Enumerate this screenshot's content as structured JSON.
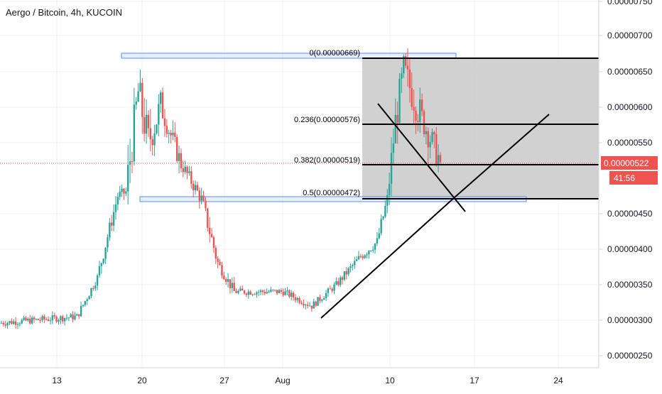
{
  "header": {
    "title": "Aergo / Bitcoin, 4h, KUCOIN"
  },
  "price_axis": {
    "ticks": [
      "0.00000750",
      "0.00000700",
      "0.00000650",
      "0.00000600",
      "0.00000550",
      "0.00000450",
      "0.00000400",
      "0.00000350",
      "0.00000300",
      "0.00000250"
    ],
    "current_price": "0.00000522",
    "countdown": "41:56"
  },
  "time_axis": {
    "ticks": [
      "13",
      "20",
      "27",
      "Aug",
      "10",
      "17",
      "24"
    ]
  },
  "fib_labels": [
    "0(0.00000669)",
    "0.236(0.00000576)",
    "0.382(0.00000519)",
    "0.5(0.00000472)"
  ],
  "colors": {
    "up": "#26a69a",
    "down": "#ef5350",
    "fib_zone": "#cccccc",
    "box": "#2962ff",
    "line": "#000000"
  },
  "chart_data": {
    "type": "candlestick",
    "title": "Aergo / Bitcoin, 4h, KUCOIN",
    "ylim": [
      2.2e-06,
      7.7e-06
    ],
    "x_ticks": [
      "13",
      "20",
      "27",
      "Aug",
      "10",
      "17",
      "24"
    ],
    "y_ticks": [
      7.5e-06,
      7e-06,
      6.5e-06,
      6e-06,
      5.5e-06,
      4.5e-06,
      4e-06,
      3.5e-06,
      3e-06,
      2.5e-06
    ],
    "current_price": 5.22e-06,
    "fib_levels": [
      {
        "ratio": 0,
        "price": 6.69e-06
      },
      {
        "ratio": 0.236,
        "price": 5.76e-06
      },
      {
        "ratio": 0.382,
        "price": 5.19e-06
      },
      {
        "ratio": 0.5,
        "price": 4.72e-06
      }
    ],
    "phases": [
      {
        "candles": 38,
        "start": 2.96e-06,
        "end": 3.05e-06,
        "vol": 1e-07
      },
      {
        "candles": 10,
        "start": 3.05e-06,
        "end": 3.6e-06,
        "vol": 1.2e-07
      },
      {
        "candles": 10,
        "start": 3.6e-06,
        "end": 4.75e-06,
        "vol": 2e-07
      },
      {
        "candles": 4,
        "start": 4.75e-06,
        "end": 4.8e-06,
        "vol": 1.5e-07
      },
      {
        "candles": 6,
        "start": 4.8e-06,
        "end": 6.2e-06,
        "vol": 6e-07
      },
      {
        "candles": 5,
        "start": 6.2e-06,
        "end": 5.5e-06,
        "vol": 6e-07
      },
      {
        "candles": 6,
        "start": 5.5e-06,
        "end": 6e-06,
        "vol": 5e-07
      },
      {
        "candles": 10,
        "start": 6e-06,
        "end": 5.2e-06,
        "vol": 3e-07
      },
      {
        "candles": 10,
        "start": 5.2e-06,
        "end": 4.7e-06,
        "vol": 2e-07
      },
      {
        "candles": 8,
        "start": 4.7e-06,
        "end": 3.8e-06,
        "vol": 2.5e-07
      },
      {
        "candles": 8,
        "start": 3.8e-06,
        "end": 3.4e-06,
        "vol": 1.5e-07
      },
      {
        "candles": 24,
        "start": 3.4e-06,
        "end": 3.4e-06,
        "vol": 1e-07
      },
      {
        "candles": 14,
        "start": 3.4e-06,
        "end": 3.2e-06,
        "vol": 1e-07
      },
      {
        "candles": 12,
        "start": 3.2e-06,
        "end": 3.5e-06,
        "vol": 1e-07
      },
      {
        "candles": 12,
        "start": 3.5e-06,
        "end": 3.9e-06,
        "vol": 1.2e-07
      },
      {
        "candles": 8,
        "start": 3.9e-06,
        "end": 4.1e-06,
        "vol": 1.5e-07
      },
      {
        "candles": 5,
        "start": 4.1e-06,
        "end": 4.7e-06,
        "vol": 2e-07
      },
      {
        "candles": 4,
        "start": 4.7e-06,
        "end": 5.8e-06,
        "vol": 4e-07
      },
      {
        "candles": 4,
        "start": 5.8e-06,
        "end": 6.5e-06,
        "vol": 5e-07
      },
      {
        "candles": 8,
        "start": 6.5e-06,
        "end": 5.9e-06,
        "vol": 5e-07
      },
      {
        "candles": 10,
        "start": 5.9e-06,
        "end": 5.22e-06,
        "vol": 4e-07
      }
    ]
  }
}
